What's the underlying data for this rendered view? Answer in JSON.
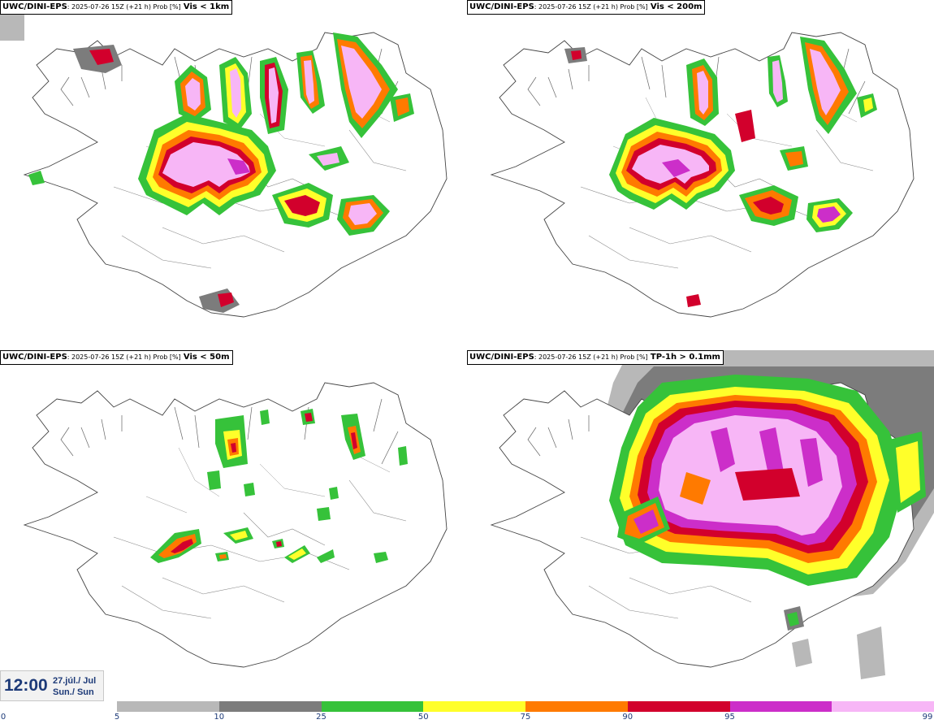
{
  "panels": [
    {
      "model": "UWC/DINI-EPS",
      "info": ": 2025-07-26 15Z (+21 h) Prob [%]",
      "var": "Vis < 1km"
    },
    {
      "model": "UWC/DINI-EPS",
      "info": ": 2025-07-26 15Z (+21 h) Prob [%]",
      "var": "Vis < 200m"
    },
    {
      "model": "UWC/DINI-EPS",
      "info": ": 2025-07-26 15Z (+21 h) Prob [%]",
      "var": "Vis < 50m"
    },
    {
      "model": "UWC/DINI-EPS",
      "info": ": 2025-07-26 15Z (+21 h) Prob [%]",
      "var": "TP-1h > 0.1mm"
    }
  ],
  "time": {
    "hour": "12:00",
    "date": "27.júl./ Jul",
    "day": "Sun./ Sun"
  },
  "legend": {
    "ticks": [
      "0",
      "5",
      "10",
      "25",
      "50",
      "75",
      "90",
      "95",
      "99"
    ],
    "colors": [
      "#b8b8b8",
      "#7c7c7c",
      "#36c23a",
      "#ffff2a",
      "#ff7a00",
      "#d2002c",
      "#cc2ec9",
      "#f7b6f6"
    ]
  }
}
